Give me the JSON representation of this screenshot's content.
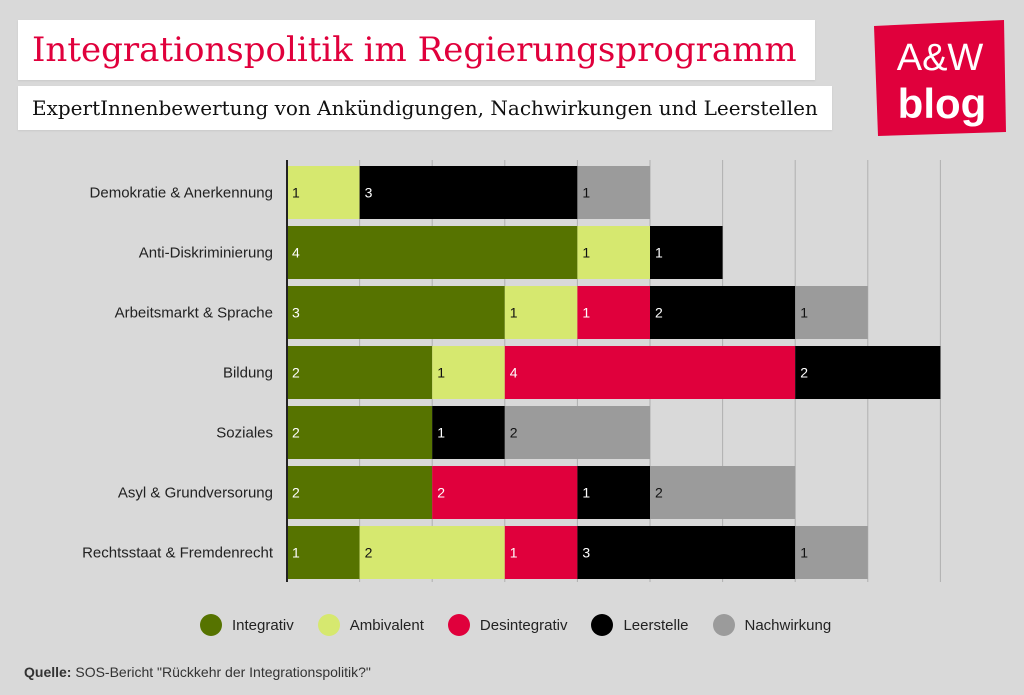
{
  "header": {
    "title": "Integrationspolitik im Regierungsprogramm",
    "subtitle": "ExpertInnenbewertung von Ankündigungen, Nachwirkungen und Leerstellen"
  },
  "logo": {
    "line1": "A&W",
    "line2": "blog",
    "color": "#e0003c"
  },
  "source": {
    "label": "Quelle:",
    "text": "SOS-Bericht \"Rückkehr der Integrationspolitik?\""
  },
  "chart_data": {
    "type": "bar",
    "orientation": "horizontal",
    "stacked": true,
    "categories": [
      "Demokratie & Anerkennung",
      "Anti-Diskriminierung",
      "Arbeitsmarkt & Sprache",
      "Bildung",
      "Soziales",
      "Asyl & Grundversorung",
      "Rechtsstaat & Fremdenrecht"
    ],
    "series": [
      {
        "name": "Integrativ",
        "color": "#567300",
        "values": [
          0,
          4,
          3,
          2,
          2,
          2,
          1
        ]
      },
      {
        "name": "Ambivalent",
        "color": "#d6e86f",
        "values": [
          1,
          1,
          1,
          1,
          0,
          0,
          2
        ]
      },
      {
        "name": "Desintegrativ",
        "color": "#e0003c",
        "values": [
          0,
          0,
          1,
          4,
          0,
          2,
          1
        ]
      },
      {
        "name": "Leerstelle",
        "color": "#000000",
        "values": [
          3,
          1,
          2,
          2,
          1,
          1,
          3
        ]
      },
      {
        "name": "Nachwirkung",
        "color": "#9b9b9b",
        "values": [
          1,
          0,
          1,
          0,
          2,
          2,
          1
        ]
      }
    ],
    "xlim": [
      0,
      9
    ],
    "grid": true,
    "legend_position": "bottom"
  }
}
